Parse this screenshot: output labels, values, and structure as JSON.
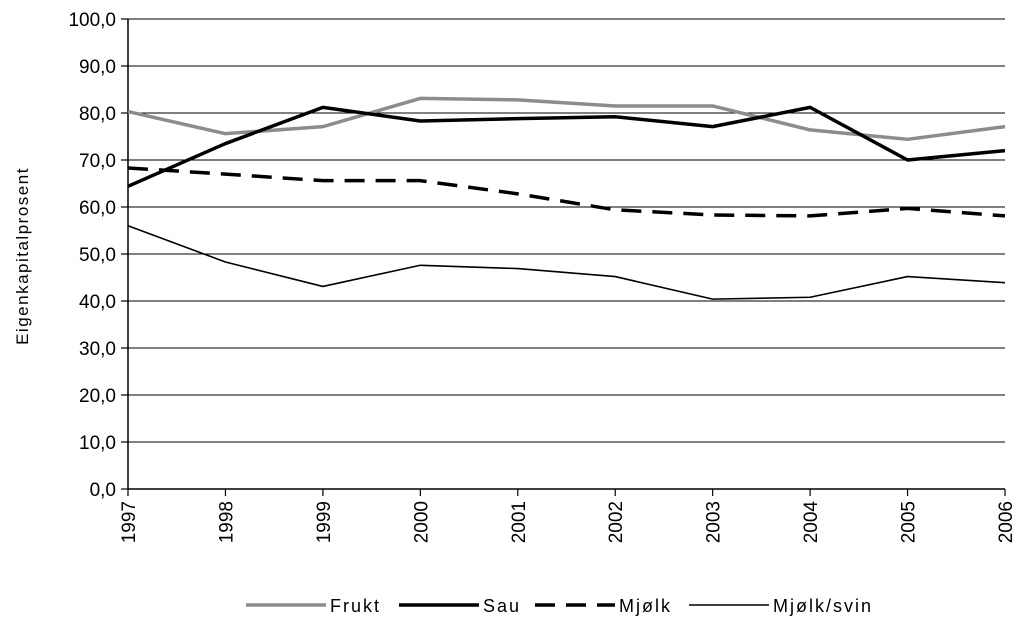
{
  "chart_data": {
    "type": "line",
    "ylabel": "Eigenkapitalprosent",
    "xlabel": "",
    "ylim": [
      0,
      100
    ],
    "yticks": [
      "0,0",
      "10,0",
      "20,0",
      "30,0",
      "40,0",
      "50,0",
      "60,0",
      "70,0",
      "80,0",
      "90,0",
      "100,0"
    ],
    "categories": [
      "1997",
      "1998",
      "1999",
      "2000",
      "2001",
      "2002",
      "2003",
      "2004",
      "2005",
      "2006"
    ],
    "grid": "horizontal",
    "legend_position": "bottom",
    "series": [
      {
        "name": "Frukt",
        "color": "#8c8c8c",
        "style": "solid-thick",
        "values": [
          80.3,
          75.6,
          77.1,
          83.1,
          82.8,
          81.5,
          81.5,
          76.4,
          74.4,
          77.1
        ]
      },
      {
        "name": "Sau",
        "color": "#000000",
        "style": "solid-thick",
        "values": [
          64.4,
          73.5,
          81.2,
          78.3,
          78.8,
          79.2,
          77.1,
          81.2,
          70.0,
          72.0
        ]
      },
      {
        "name": "Mjølk",
        "color": "#000000",
        "style": "dashed",
        "values": [
          68.3,
          67.0,
          65.6,
          65.6,
          62.8,
          59.4,
          58.3,
          58.1,
          59.7,
          58.1
        ]
      },
      {
        "name": "Mjølk/svin",
        "color": "#000000",
        "style": "solid-thin",
        "values": [
          56.0,
          48.3,
          43.1,
          47.6,
          46.9,
          45.2,
          40.4,
          40.8,
          45.2,
          43.9
        ]
      }
    ]
  }
}
